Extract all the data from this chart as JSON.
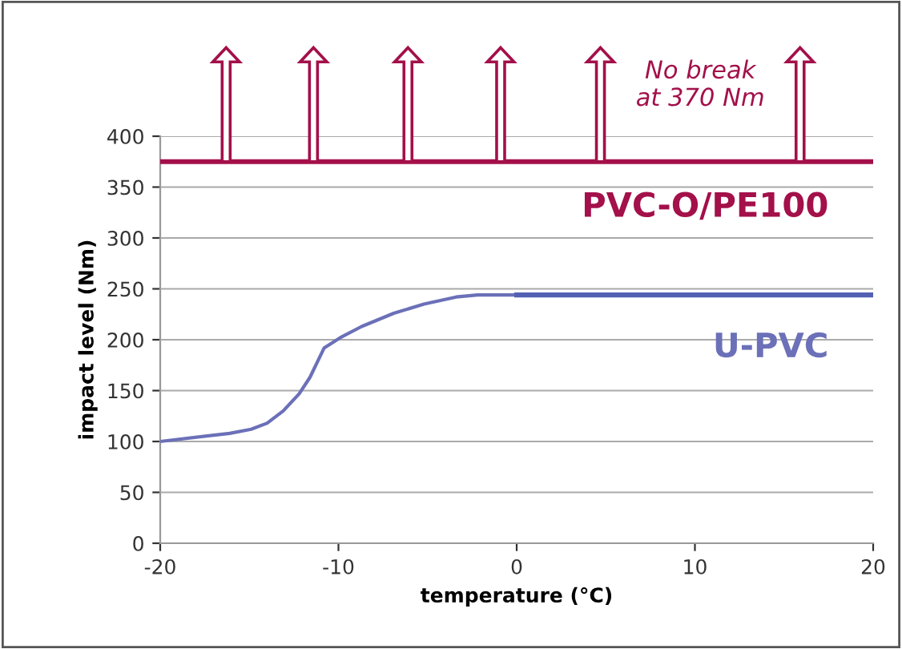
{
  "chart_data": {
    "type": "line",
    "xlabel": "temperature (°C)",
    "ylabel": "impact level (Nm)",
    "xlim": [
      -20,
      20
    ],
    "xticks": [
      -20,
      -10,
      0,
      10,
      20
    ],
    "ylim": [
      0,
      400
    ],
    "yticks": [
      0,
      50,
      100,
      150,
      200,
      250,
      300,
      350,
      400
    ],
    "grid": "y",
    "legend": false,
    "marker": "none",
    "line_style": "solid",
    "series": [
      {
        "name": "PVC-O/PE100",
        "color": "#a3104a",
        "x": [
          -20,
          20
        ],
        "values": [
          375,
          375
        ]
      },
      {
        "name": "U-PVC",
        "color": "#6b70b8",
        "x": [
          -20,
          -16.1,
          -14.9,
          -14,
          -13.1,
          -12.2,
          -11.6,
          -10.8,
          -9.9,
          -8.7,
          -6.9,
          -5.2,
          -3.4,
          -2.2,
          0
        ],
        "values": [
          100,
          108,
          112,
          118,
          130,
          147,
          163,
          192,
          202,
          213,
          226,
          235,
          242,
          244,
          244
        ]
      },
      {
        "color": "#5361b5",
        "x": [
          0,
          20
        ],
        "values": [
          244,
          244
        ]
      }
    ],
    "annotations": [
      "No break\nat 370 Nm"
    ]
  }
}
